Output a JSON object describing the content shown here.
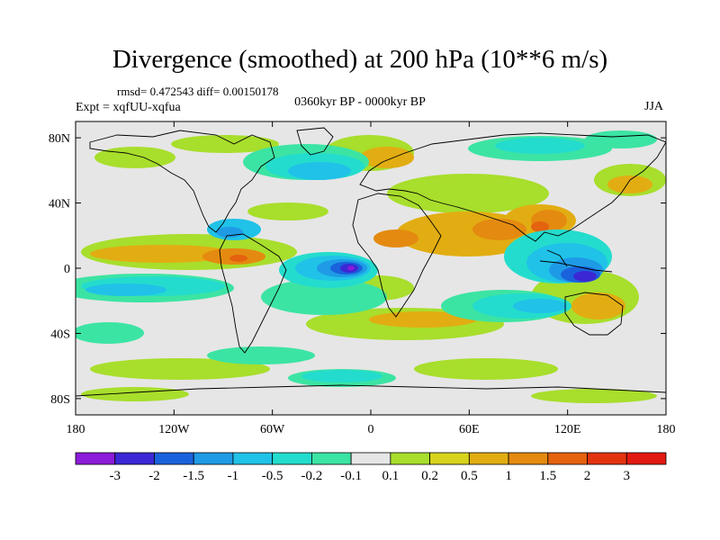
{
  "title": "Divergence (smoothed) at 200 hPa (10**6 m/s)",
  "stats_line": "rmsd= 0.472543 diff= 0.00150178",
  "experiment": "Expt = xqfUU-xqfua",
  "period": "0360kyr BP - 0000kyr BP",
  "season": "JJA",
  "latitude_ticks": [
    {
      "label": "80N",
      "lat": 80
    },
    {
      "label": "40N",
      "lat": 40
    },
    {
      "label": "0",
      "lat": 0
    },
    {
      "label": "40S",
      "lat": -40
    },
    {
      "label": "80S",
      "lat": -80
    }
  ],
  "longitude_ticks": [
    {
      "label": "180",
      "lon": -180
    },
    {
      "label": "120W",
      "lon": -120
    },
    {
      "label": "60W",
      "lon": -60
    },
    {
      "label": "0",
      "lon": 0
    },
    {
      "label": "60E",
      "lon": 60
    },
    {
      "label": "120E",
      "lon": 120
    },
    {
      "label": "180",
      "lon": 180
    }
  ],
  "colorbar": {
    "colors": [
      "#8c1cd9",
      "#3b28d4",
      "#1a62dc",
      "#1f9be6",
      "#20c2e8",
      "#24dccd",
      "#3ce4a3",
      "#e6e6e6",
      "#a8de2c",
      "#d7d31d",
      "#e2ad12",
      "#e48a10",
      "#e5620e",
      "#e33410",
      "#e21a12"
    ],
    "labels": [
      "-3",
      "-2",
      "-1.5",
      "-1",
      "-0.5",
      "-0.2",
      "-0.1",
      "0.1",
      "0.2",
      "0.5",
      "1",
      "1.5",
      "2",
      "3"
    ]
  },
  "colors": {
    "ocean_background": "#e6e6e6",
    "coastline": "#000000"
  }
}
